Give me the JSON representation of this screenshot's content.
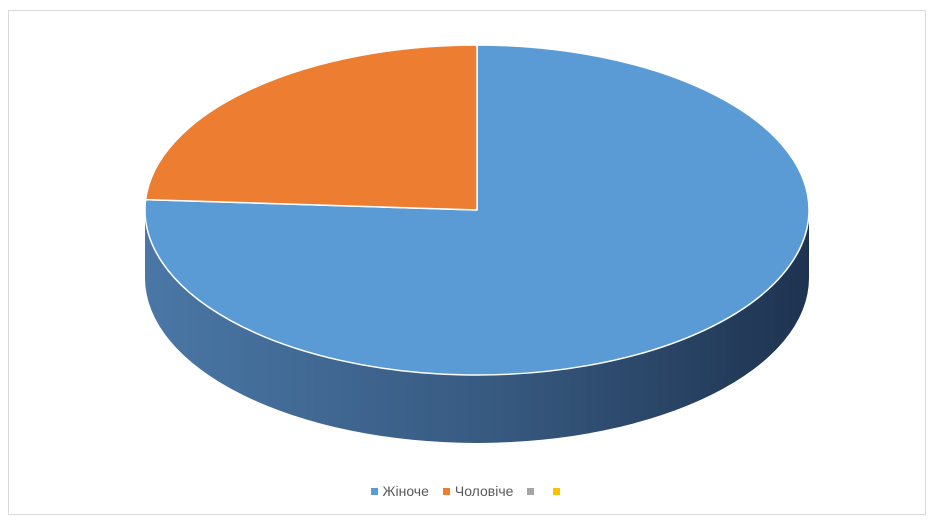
{
  "chart_data": {
    "type": "pie",
    "style": "3d",
    "categories": [
      "Жіноче",
      "Чоловіче",
      "",
      ""
    ],
    "values": [
      76,
      24,
      0,
      0
    ],
    "colors": [
      "#5b9bd5",
      "#ed7d31",
      "#a5a5a5",
      "#ffc000"
    ],
    "legend_position": "bottom"
  }
}
